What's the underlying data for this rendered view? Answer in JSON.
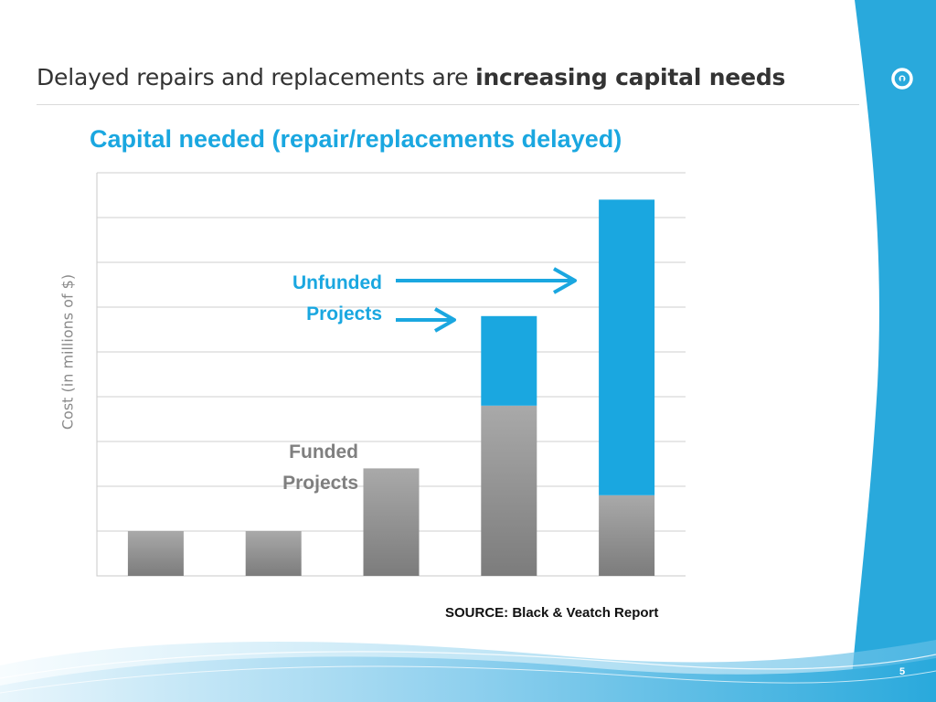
{
  "slide": {
    "title_plain": "Delayed repairs and replacements are ",
    "title_bold": "increasing capital needs",
    "page_number": "5",
    "source": "SOURCE:  Black & Veatch Report",
    "logo_icon": "circle-logo-icon"
  },
  "annotations": {
    "unfunded_line1": "Unfunded",
    "unfunded_line2": "Projects",
    "funded_line1": "Funded",
    "funded_line2": "Projects"
  },
  "colors": {
    "accent": "#1aa7e0",
    "funded": "#8f8f8f",
    "band": "#29a9dc"
  },
  "chart_data": {
    "type": "bar",
    "stacked": true,
    "title": "Capital needed (repair/replacements delayed)",
    "ylabel": "Cost (in millions of $)",
    "xlabel": "",
    "categories": [
      "",
      "",
      "",
      "",
      ""
    ],
    "ylim": [
      0,
      9
    ],
    "grid": true,
    "series": [
      {
        "name": "Funded Projects",
        "values": [
          1.0,
          1.0,
          2.4,
          3.8,
          1.8
        ]
      },
      {
        "name": "Unfunded Projects",
        "values": [
          0,
          0,
          0,
          2.0,
          6.6
        ]
      }
    ]
  }
}
